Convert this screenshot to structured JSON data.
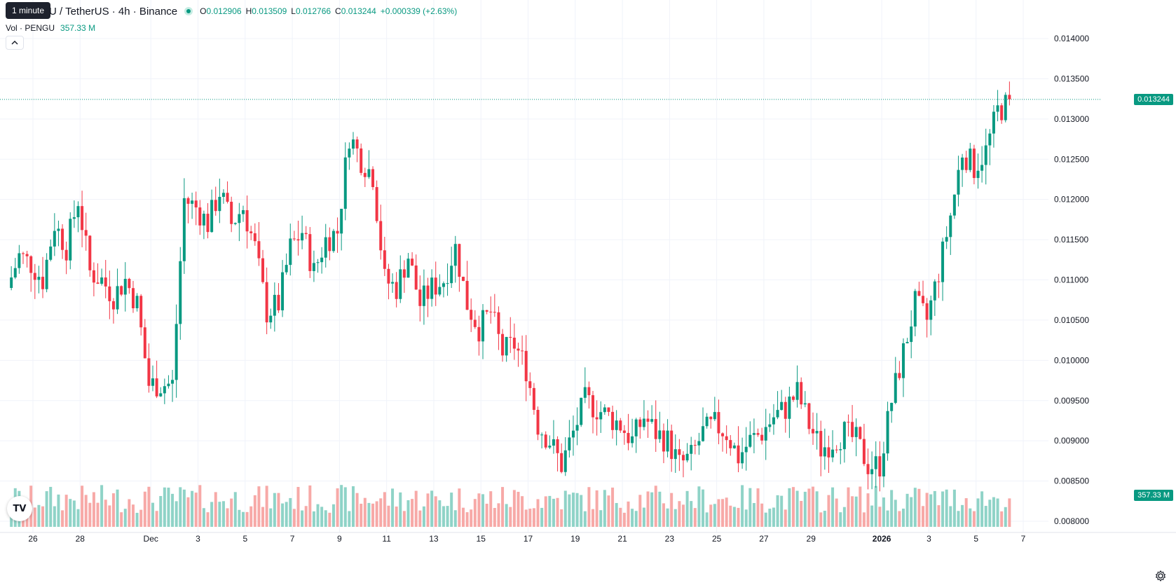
{
  "legend": {
    "symbol_title": "U / TetherUS · 4h · Binance",
    "ohlc": [
      {
        "key": "O",
        "value": "0.012906"
      },
      {
        "key": "H",
        "value": "0.013509"
      },
      {
        "key": "L",
        "value": "0.012766"
      },
      {
        "key": "C",
        "value": "0.013244"
      }
    ],
    "change": "+0.000339 (+2.63%)",
    "volume_label": "Vol · PENGU",
    "volume_value": "357.33 M"
  },
  "tooltip": "1 minute",
  "price_tag": "0.013244",
  "volume_tag": "357.33 M",
  "logo_text": "TV",
  "colors": {
    "up": "#089981",
    "down": "#f23645",
    "vol_up": "#8fd3c7",
    "vol_down": "#f7a9a7",
    "grid": "#f0f3fa",
    "axis_text": "#131722"
  },
  "chart_data": {
    "type": "candlestick",
    "interval": "4h",
    "y_ticks": [
      "0.014000",
      "0.013500",
      "0.013000",
      "0.012500",
      "0.012000",
      "0.011500",
      "0.011000",
      "0.010500",
      "0.010000",
      "0.009500",
      "0.009000",
      "0.008500",
      "0.008000"
    ],
    "ylim": [
      0.0079,
      0.01405
    ],
    "x_ticks": [
      {
        "label": "26",
        "day": 26
      },
      {
        "label": "28",
        "day": 28
      },
      {
        "label": "Dec",
        "day": 31
      },
      {
        "label": "3",
        "day": 33
      },
      {
        "label": "5",
        "day": 35
      },
      {
        "label": "7",
        "day": 37
      },
      {
        "label": "9",
        "day": 39
      },
      {
        "label": "11",
        "day": 41
      },
      {
        "label": "13",
        "day": 43
      },
      {
        "label": "15",
        "day": 45
      },
      {
        "label": "17",
        "day": 47
      },
      {
        "label": "19",
        "day": 49
      },
      {
        "label": "21",
        "day": 51
      },
      {
        "label": "23",
        "day": 53
      },
      {
        "label": "25",
        "day": 55
      },
      {
        "label": "27",
        "day": 57
      },
      {
        "label": "29",
        "day": 59
      },
      {
        "label": "2026",
        "day": 62
      },
      {
        "label": "3",
        "day": 64
      },
      {
        "label": "5",
        "day": 66
      },
      {
        "label": "7",
        "day": 68
      }
    ],
    "x_range_days": [
      24.8,
      69
    ],
    "close_points": [
      [
        25.0,
        0.0109
      ],
      [
        25.5,
        0.0113
      ],
      [
        26.0,
        0.0112
      ],
      [
        26.5,
        0.011
      ],
      [
        27.0,
        0.0117
      ],
      [
        27.5,
        0.0114
      ],
      [
        28.0,
        0.012
      ],
      [
        28.5,
        0.0111
      ],
      [
        29.0,
        0.011
      ],
      [
        29.5,
        0.0108
      ],
      [
        30.0,
        0.011
      ],
      [
        30.5,
        0.0107
      ],
      [
        31.0,
        0.0097
      ],
      [
        31.5,
        0.0097
      ],
      [
        32.0,
        0.0097
      ],
      [
        32.5,
        0.012
      ],
      [
        33.0,
        0.0119
      ],
      [
        33.5,
        0.0117
      ],
      [
        34.0,
        0.0121
      ],
      [
        34.5,
        0.0117
      ],
      [
        35.0,
        0.0119
      ],
      [
        35.5,
        0.0114
      ],
      [
        36.0,
        0.0106
      ],
      [
        36.5,
        0.0107
      ],
      [
        37.0,
        0.0114
      ],
      [
        37.5,
        0.0116
      ],
      [
        38.0,
        0.0111
      ],
      [
        38.5,
        0.0115
      ],
      [
        39.0,
        0.0116
      ],
      [
        39.5,
        0.0128
      ],
      [
        40.0,
        0.0125
      ],
      [
        40.5,
        0.0123
      ],
      [
        41.0,
        0.011
      ],
      [
        41.5,
        0.0109
      ],
      [
        42.0,
        0.0113
      ],
      [
        42.5,
        0.0107
      ],
      [
        43.0,
        0.0109
      ],
      [
        43.5,
        0.011
      ],
      [
        44.0,
        0.0114
      ],
      [
        44.5,
        0.0107
      ],
      [
        45.0,
        0.0104
      ],
      [
        45.5,
        0.0106
      ],
      [
        46.0,
        0.0101
      ],
      [
        46.5,
        0.0102
      ],
      [
        47.0,
        0.0099
      ],
      [
        47.5,
        0.0092
      ],
      [
        48.0,
        0.009
      ],
      [
        48.5,
        0.0087
      ],
      [
        49.0,
        0.0091
      ],
      [
        49.5,
        0.0095
      ],
      [
        50.0,
        0.0094
      ],
      [
        50.5,
        0.0093
      ],
      [
        51.0,
        0.0092
      ],
      [
        51.5,
        0.009
      ],
      [
        52.0,
        0.0093
      ],
      [
        52.5,
        0.0091
      ],
      [
        53.0,
        0.009
      ],
      [
        53.5,
        0.0087
      ],
      [
        54.0,
        0.0088
      ],
      [
        54.5,
        0.0091
      ],
      [
        55.0,
        0.0092
      ],
      [
        55.5,
        0.0091
      ],
      [
        56.0,
        0.0088
      ],
      [
        56.5,
        0.009
      ],
      [
        57.0,
        0.0091
      ],
      [
        57.5,
        0.0093
      ],
      [
        58.0,
        0.0094
      ],
      [
        58.5,
        0.0096
      ],
      [
        59.0,
        0.0092
      ],
      [
        59.5,
        0.0089
      ],
      [
        60.0,
        0.009
      ],
      [
        60.5,
        0.0091
      ],
      [
        61.0,
        0.009
      ],
      [
        61.5,
        0.0087
      ],
      [
        62.0,
        0.0087
      ],
      [
        62.5,
        0.0095
      ],
      [
        63.0,
        0.0101
      ],
      [
        63.5,
        0.0107
      ],
      [
        64.0,
        0.0105
      ],
      [
        64.5,
        0.0111
      ],
      [
        65.0,
        0.0118
      ],
      [
        65.5,
        0.0126
      ],
      [
        66.0,
        0.0124
      ],
      [
        66.5,
        0.0126
      ],
      [
        67.0,
        0.0131
      ],
      [
        67.5,
        0.0132
      ]
    ],
    "last_close": 0.013244,
    "last_volume": "357.33 M"
  }
}
